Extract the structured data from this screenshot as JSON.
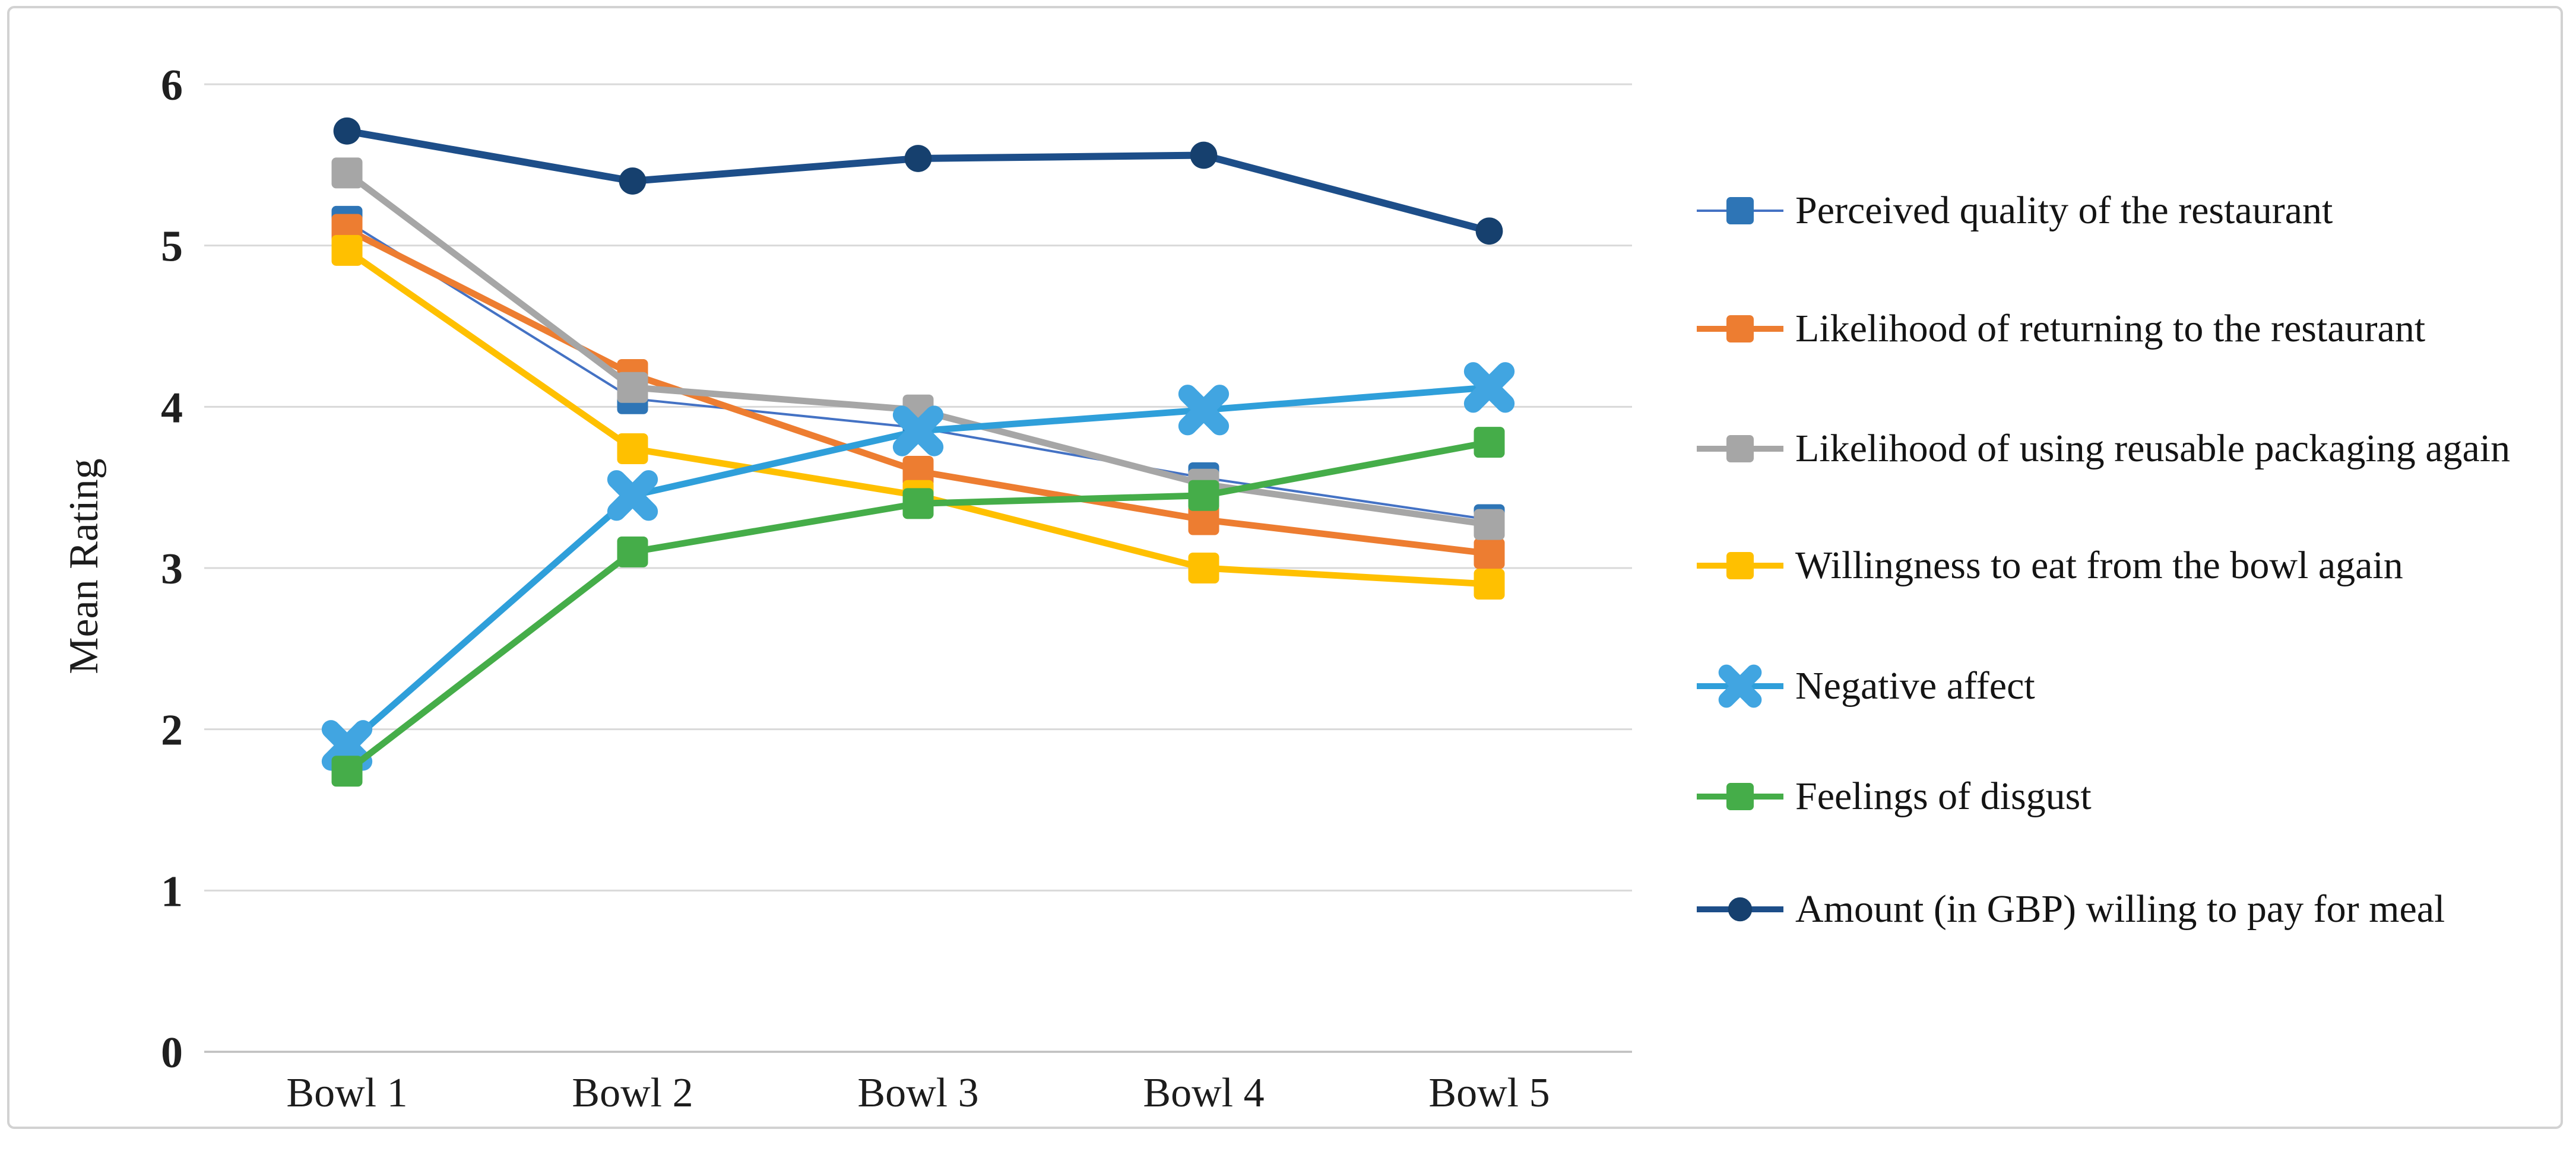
{
  "figure": {
    "background": "#ffffff",
    "border_color": "#d2d2d2"
  },
  "axes": {
    "y_title": "Mean Rating",
    "y_ticks": [
      0,
      1,
      2,
      3,
      4,
      5,
      6
    ],
    "x_categories": [
      "Bowl 1",
      "Bowl 2",
      "Bowl 3",
      "Bowl 4",
      "Bowl 5"
    ],
    "gridline_color": "#d9d9d9",
    "axis_line_color": "#bfbfbf",
    "text_color": "#1c1c1c"
  },
  "chart_data": {
    "type": "line",
    "title": "",
    "xlabel": "",
    "ylabel": "Mean Rating",
    "ylim": [
      0,
      6
    ],
    "grid": "horizontal",
    "legend_position": "right",
    "categories": [
      "Bowl 1",
      "Bowl 2",
      "Bowl 3",
      "Bowl 4",
      "Bowl 5"
    ],
    "series": [
      {
        "name": "Perceived quality of the restaurant",
        "marker": "square",
        "color": "#2e75b6",
        "line_color": "#4472c4",
        "line_width": 4,
        "values": [
          5.15,
          4.05,
          3.87,
          3.56,
          3.3
        ]
      },
      {
        "name": "Likelihood of returning to the restaurant",
        "marker": "square",
        "color": "#ed7d31",
        "line_color": "#ed7d31",
        "line_width": 11,
        "values": [
          5.1,
          4.2,
          3.6,
          3.3,
          3.09
        ]
      },
      {
        "name": "Likelihood of using reusable packaging again",
        "marker": "square",
        "color": "#a6a6a6",
        "line_color": "#a6a6a6",
        "line_width": 11,
        "values": [
          5.45,
          4.12,
          3.98,
          3.52,
          3.27
        ]
      },
      {
        "name": "Willingness to eat from the bowl again",
        "marker": "square",
        "color": "#ffc000",
        "line_color": "#ffc000",
        "line_width": 11,
        "values": [
          4.97,
          3.74,
          3.45,
          3.0,
          2.9
        ]
      },
      {
        "name": "Negative affect",
        "marker": "x",
        "color": "#41a5e1",
        "line_color": "#2f9fda",
        "line_width": 11,
        "values": [
          1.9,
          3.45,
          3.85,
          3.98,
          4.12
        ]
      },
      {
        "name": "Feelings of disgust",
        "marker": "square",
        "color": "#45ad49",
        "line_color": "#45ad49",
        "line_width": 11,
        "values": [
          1.74,
          3.1,
          3.4,
          3.45,
          3.78
        ]
      },
      {
        "name": "Amount (in GBP) willing to pay for meal",
        "marker": "circle",
        "color": "#16406e",
        "line_color": "#1d4e89",
        "line_width": 12,
        "values": [
          5.71,
          5.4,
          5.54,
          5.56,
          5.09
        ]
      }
    ]
  }
}
